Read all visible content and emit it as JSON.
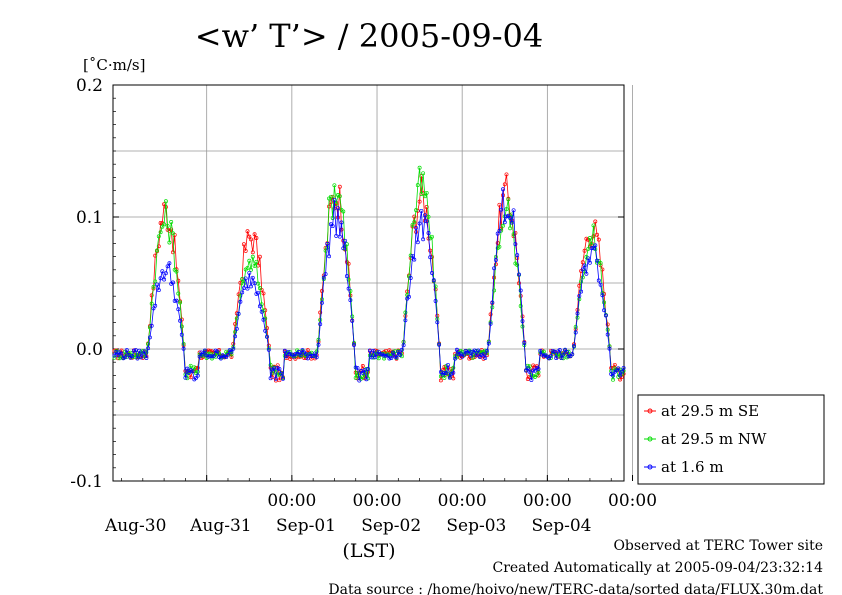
{
  "chart_data": {
    "type": "line",
    "title": "<w’ T’> / 2005-09-04",
    "ylabel": "[˚C·m/s]",
    "xlabel": "(LST)",
    "ylim": [
      -0.1,
      0.2
    ],
    "yticks": [
      {
        "value": 0.2,
        "label": "0.2"
      },
      {
        "value": 0.1,
        "label": "0.1"
      },
      {
        "value": 0.0,
        "label": "0.0"
      },
      {
        "value": -0.1,
        "label": "-0.1"
      }
    ],
    "xlim_days": [
      -1.1,
      4.9
    ],
    "day_ticks": [
      {
        "day": 0,
        "time": "00:00",
        "date": "Aug-30"
      },
      {
        "day": 1,
        "time": "00:00",
        "date": "Aug-31"
      },
      {
        "day": 2,
        "time": "00:00",
        "date": "Sep-01"
      },
      {
        "day": 3,
        "time": "00:00",
        "date": "Sep-02"
      },
      {
        "day": 4,
        "time": "00:00",
        "date": "Sep-03"
      },
      {
        "day": 5,
        "time": "00:00",
        "date": "Sep-04"
      }
    ],
    "grid": true,
    "legend_position": "right",
    "series": [
      {
        "name": "at 29.5 m SE",
        "color": "#ff0000",
        "peaks": [
          0.125,
          0.103,
          0.14,
          0.138,
          0.138,
          0.11
        ]
      },
      {
        "name": "at 29.5 m NW",
        "color": "#00dd00",
        "peaks": [
          0.118,
          0.08,
          0.145,
          0.145,
          0.125,
          0.1
        ]
      },
      {
        "name": "at 1.6 m",
        "color": "#0000ff",
        "peaks": [
          0.075,
          0.068,
          0.12,
          0.115,
          0.135,
          0.09
        ]
      }
    ]
  },
  "footer": {
    "observed": "Observed at TERC Tower site",
    "created": "Created Automatically at 2005-09-04/23:32:14",
    "source": "Data source : /home/hoivo/new/TERC-data/sorted  data/FLUX.30m.dat"
  }
}
